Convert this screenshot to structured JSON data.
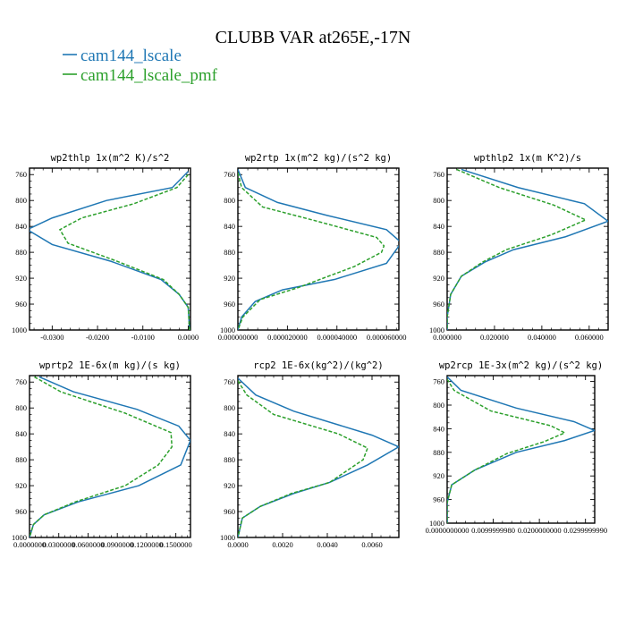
{
  "title": "CLUBB VAR at265E,-17N",
  "legend": [
    {
      "label": "cam144_lscale",
      "color": "#1f77b4",
      "dashed": false
    },
    {
      "label": "cam144_lscale_pmf",
      "color": "#2ca02c",
      "dashed": true
    }
  ],
  "chart_data": [
    {
      "type": "line",
      "title": "wp2thlp  1x(m^2 K)/s^2",
      "xlim": [
        -0.035,
        0.0005
      ],
      "ylim": [
        1000,
        750
      ],
      "xticks": [
        -0.03,
        -0.02,
        -0.01,
        0.0
      ],
      "xtick_labels": [
        "-0.0300",
        "-0.0200",
        "-0.0100",
        "0.0000"
      ],
      "yticks": [
        760,
        800,
        840,
        880,
        920,
        960,
        1000
      ],
      "series": [
        {
          "name": "cam144_lscale",
          "points": [
            [
              0.0,
              755
            ],
            [
              -0.0035,
              780
            ],
            [
              -0.018,
              800
            ],
            [
              -0.03,
              827
            ],
            [
              -0.0355,
              845
            ],
            [
              -0.03,
              868
            ],
            [
              -0.017,
              894
            ],
            [
              -0.006,
              922
            ],
            [
              -0.002,
              945
            ],
            [
              0.0,
              965
            ],
            [
              0.0003,
              1000
            ]
          ]
        },
        {
          "name": "cam144_lscale_pmf",
          "points": [
            [
              0.0,
              760
            ],
            [
              -0.0025,
              780
            ],
            [
              -0.012,
              805
            ],
            [
              -0.0235,
              827
            ],
            [
              -0.0283,
              845
            ],
            [
              -0.0265,
              866
            ],
            [
              -0.016,
              893
            ],
            [
              -0.0055,
              922
            ],
            [
              -0.002,
              945
            ],
            [
              0.0,
              965
            ],
            [
              0.0003,
              1000
            ]
          ]
        }
      ]
    },
    {
      "type": "line",
      "title": "wp2rtp  1x(m^2 kg)/(s^2 kg)",
      "xlim": [
        0.0,
        6.5e-05
      ],
      "ylim": [
        1000,
        750
      ],
      "xticks": [
        0.0,
        2e-05,
        4e-05,
        6e-05
      ],
      "xtick_labels": [
        "0.000000000",
        "0.000020000",
        "0.000040000",
        "0.000060000"
      ],
      "yticks": [
        760,
        800,
        840,
        880,
        920,
        960,
        1000
      ],
      "series": [
        {
          "name": "cam144_lscale",
          "points": [
            [
              0.0,
              752
            ],
            [
              3e-06,
              780
            ],
            [
              1.6e-05,
              803
            ],
            [
              3.6e-05,
              823
            ],
            [
              6e-05,
              845
            ],
            [
              6.6e-05,
              865
            ],
            [
              6e-05,
              897
            ],
            [
              3.9e-05,
              922
            ],
            [
              1.8e-05,
              938
            ],
            [
              7e-06,
              956
            ],
            [
              1.5e-06,
              980
            ],
            [
              0.0,
              1000
            ]
          ]
        },
        {
          "name": "cam144_lscale_pmf",
          "points": [
            [
              0.0,
              757
            ],
            [
              1.5e-06,
              780
            ],
            [
              1e-05,
              810
            ],
            [
              3.2e-05,
              832
            ],
            [
              5.6e-05,
              857
            ],
            [
              5.9e-05,
              870
            ],
            [
              5.8e-05,
              880
            ],
            [
              4.7e-05,
              902
            ],
            [
              2.4e-05,
              935
            ],
            [
              9e-06,
              953
            ],
            [
              2e-06,
              980
            ],
            [
              0.0,
              1000
            ]
          ]
        }
      ]
    },
    {
      "type": "line",
      "title": "wpthlp2  1x(m K^2)/s",
      "xlim": [
        0.0,
        0.068
      ],
      "ylim": [
        1000,
        750
      ],
      "xticks": [
        0.0,
        0.02,
        0.04,
        0.06
      ],
      "xtick_labels": [
        "0.000000",
        "0.020000",
        "0.040000",
        "0.060000"
      ],
      "yticks": [
        760,
        800,
        840,
        880,
        920,
        960,
        1000
      ],
      "series": [
        {
          "name": "cam144_lscale",
          "points": [
            [
              0.006,
              752
            ],
            [
              0.03,
              780
            ],
            [
              0.058,
              805
            ],
            [
              0.068,
              832
            ],
            [
              0.05,
              856
            ],
            [
              0.028,
              876
            ],
            [
              0.016,
              895
            ],
            [
              0.006,
              917
            ],
            [
              0.0015,
              945
            ],
            [
              0.0,
              980
            ],
            [
              0.0,
              1000
            ]
          ]
        },
        {
          "name": "cam144_lscale_pmf",
          "points": [
            [
              0.004,
              752
            ],
            [
              0.022,
              780
            ],
            [
              0.045,
              807
            ],
            [
              0.0585,
              830
            ],
            [
              0.044,
              853
            ],
            [
              0.025,
              876
            ],
            [
              0.015,
              895
            ],
            [
              0.006,
              917
            ],
            [
              0.0015,
              945
            ],
            [
              0.0,
              980
            ],
            [
              0.0,
              1000
            ]
          ]
        }
      ]
    },
    {
      "type": "line",
      "title": "wprtp2  1E-6x(m kg)/(s kg)",
      "xlim": [
        0.0,
        0.165
      ],
      "ylim": [
        1000,
        750
      ],
      "xticks": [
        0.0,
        0.03,
        0.06,
        0.09,
        0.12,
        0.15
      ],
      "xtick_labels": [
        "0.0000000",
        "0.0300000",
        "0.0600000",
        "0.0900000",
        "0.1200000",
        "0.1500000"
      ],
      "yticks": [
        760,
        800,
        840,
        880,
        920,
        960,
        1000
      ],
      "series": [
        {
          "name": "cam144_lscale",
          "points": [
            [
              0.01,
              752
            ],
            [
              0.045,
              775
            ],
            [
              0.11,
              802
            ],
            [
              0.153,
              828
            ],
            [
              0.165,
              850
            ],
            [
              0.155,
              888
            ],
            [
              0.112,
              920
            ],
            [
              0.05,
              945
            ],
            [
              0.015,
              965
            ],
            [
              0.004,
              980
            ],
            [
              0.0,
              1000
            ]
          ]
        },
        {
          "name": "cam144_lscale_pmf",
          "points": [
            [
              0.005,
              752
            ],
            [
              0.032,
              775
            ],
            [
              0.098,
              808
            ],
            [
              0.145,
              838
            ],
            [
              0.146,
              860
            ],
            [
              0.132,
              888
            ],
            [
              0.098,
              920
            ],
            [
              0.047,
              945
            ],
            [
              0.015,
              965
            ],
            [
              0.004,
              980
            ],
            [
              0.0,
              1000
            ]
          ]
        }
      ]
    },
    {
      "type": "line",
      "title": "rcp2  1E-6x(kg^2)/(kg^2)",
      "xlim": [
        0.0,
        0.0072
      ],
      "ylim": [
        1000,
        750
      ],
      "xticks": [
        0.0,
        0.002,
        0.004,
        0.006
      ],
      "xtick_labels": [
        "0.0000",
        "0.0020",
        "0.0040",
        "0.0060"
      ],
      "yticks": [
        760,
        800,
        840,
        880,
        920,
        960,
        1000
      ],
      "series": [
        {
          "name": "cam144_lscale",
          "points": [
            [
              0.0,
              754
            ],
            [
              0.0008,
              780
            ],
            [
              0.0025,
              805
            ],
            [
              0.006,
              842
            ],
            [
              0.0072,
              860
            ],
            [
              0.0058,
              888
            ],
            [
              0.0041,
              915
            ],
            [
              0.0025,
              932
            ],
            [
              0.001,
              952
            ],
            [
              0.0002,
              970
            ],
            [
              0.0,
              1000
            ]
          ]
        },
        {
          "name": "cam144_lscale_pmf",
          "points": [
            [
              0.0,
              758
            ],
            [
              0.0004,
              780
            ],
            [
              0.0016,
              810
            ],
            [
              0.0045,
              840
            ],
            [
              0.0058,
              862
            ],
            [
              0.0056,
              880
            ],
            [
              0.0041,
              915
            ],
            [
              0.0024,
              932
            ],
            [
              0.001,
              952
            ],
            [
              0.0002,
              970
            ],
            [
              0.0,
              1000
            ]
          ]
        }
      ]
    },
    {
      "type": "line",
      "title": "wp2rcp  1E-3x(m^2 kg)/(s^2 kg)",
      "xlim": [
        0.0,
        0.032
      ],
      "ylim": [
        1000,
        750
      ],
      "xticks": [
        0.0,
        0.01,
        0.02,
        0.03
      ],
      "xtick_labels": [
        "0.0000000000",
        "0.0099999980",
        "0.0200000000",
        "0.0299999990"
      ],
      "yticks": [
        760,
        800,
        840,
        880,
        920,
        960,
        1000
      ],
      "series": [
        {
          "name": "cam144_lscale",
          "points": [
            [
              0.0,
              752
            ],
            [
              0.003,
              775
            ],
            [
              0.015,
              805
            ],
            [
              0.0275,
              828
            ],
            [
              0.032,
              843
            ],
            [
              0.0255,
              860
            ],
            [
              0.015,
              880
            ],
            [
              0.006,
              910
            ],
            [
              0.001,
              935
            ],
            [
              0.0,
              965
            ],
            [
              0.0,
              1000
            ]
          ]
        },
        {
          "name": "cam144_lscale_pmf",
          "points": [
            [
              0.0,
              756
            ],
            [
              0.0015,
              775
            ],
            [
              0.0095,
              810
            ],
            [
              0.0225,
              835
            ],
            [
              0.0255,
              847
            ],
            [
              0.021,
              862
            ],
            [
              0.013,
              882
            ],
            [
              0.006,
              910
            ],
            [
              0.001,
              935
            ],
            [
              0.0,
              965
            ],
            [
              0.0,
              1000
            ]
          ]
        }
      ]
    }
  ]
}
